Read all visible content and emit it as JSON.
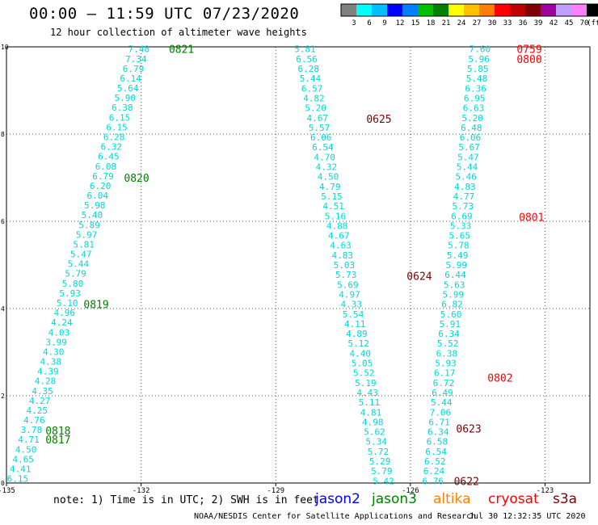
{
  "header": {
    "title": "00:00 – 11:59 UTC 07/23/2020",
    "subtitle": "12 hour collection of altimeter wave heights"
  },
  "legend_scale": {
    "colors": [
      "#808080",
      "#00ffff",
      "#00bfff",
      "#0000ff",
      "#0080ff",
      "#00c000",
      "#008000",
      "#ffff00",
      "#ffc000",
      "#ff8000",
      "#ff0000",
      "#c00000",
      "#800000",
      "#a000a0",
      "#c0a0ff",
      "#ff80ff",
      "#000000"
    ],
    "labels": [
      "3",
      "6",
      "9",
      "12",
      "15",
      "18",
      "21",
      "24",
      "27",
      "30",
      "33",
      "36",
      "39",
      "42",
      "45",
      "70",
      "(ft)"
    ]
  },
  "footer": {
    "note": "note:  1) Time is in UTC; 2) SWH is in feet",
    "credit": "NOAA/NESDIS Center for Satellite Applications and Research",
    "timestamp": "Jul 30 12:32:35 UTC 2020"
  },
  "satellites": [
    {
      "name": "jason2",
      "color": "#0000ff"
    },
    {
      "name": "jason3",
      "color": "#008000"
    },
    {
      "name": "altika",
      "color": "#ff8000"
    },
    {
      "name": "cryosat",
      "color": "#ff0000"
    },
    {
      "name": "s3a",
      "color": "#800000"
    }
  ],
  "chart_data": {
    "type": "scatter",
    "title": "00:00 – 11:59 UTC 07/23/2020",
    "xlabel": "",
    "ylabel": "",
    "xlim": [
      -135,
      -122
    ],
    "ylim": [
      0,
      10
    ],
    "x_ticks": [
      "-135",
      "-132",
      "-129",
      "-126",
      "-123",
      "-120"
    ],
    "y_ticks": [
      "0",
      "2",
      "4",
      "6",
      "8",
      "10"
    ],
    "grid": true,
    "value_color": "#00d8d8",
    "tracks": [
      {
        "name": "jason3",
        "color": "#008000",
        "x_start": -134.75,
        "x_end": -132.05,
        "y_start": 0.1,
        "y_end": 9.95,
        "values": [
          "6.15",
          "4.41",
          "4.65",
          "4.50",
          "4.71",
          "3.78",
          "4.76",
          "4.25",
          "4.27",
          "4.35",
          "4.28",
          "4.39",
          "4.38",
          "4.30",
          "3.99",
          "4.03",
          "4.24",
          "4.96",
          "5.10",
          "5.93",
          "5.80",
          "5.79",
          "5.44",
          "5.47",
          "5.81",
          "5.97",
          "5.89",
          "5.40",
          "5.98",
          "6.04",
          "6.20",
          "6.79",
          "6.08",
          "6.45",
          "6.32",
          "6.28",
          "6.15",
          "6.15",
          "6.38",
          "5.90",
          "5.64",
          "6.14",
          "6.79",
          "7.34",
          "7.48"
        ],
        "time_labels": [
          {
            "text": "0817",
            "x": -133.85,
            "y": 1.0
          },
          {
            "text": "0818",
            "x": -133.85,
            "y": 1.2
          },
          {
            "text": "0819",
            "x": -133.0,
            "y": 4.1
          },
          {
            "text": "0820",
            "x": -132.1,
            "y": 7.0
          },
          {
            "text": "0821",
            "x": -131.1,
            "y": 9.95
          }
        ]
      },
      {
        "name": "s3a",
        "color": "#800000",
        "x_start": -128.35,
        "x_end": -126.6,
        "y_start": 9.95,
        "y_end": 0.05,
        "values": [
          "5.81",
          "6.56",
          "6.28",
          "5.44",
          "6.57",
          "4.82",
          "5.20",
          "4.67",
          "5.57",
          "6.06",
          "6.54",
          "4.70",
          "4.32",
          "4.50",
          "4.79",
          "5.15",
          "4.51",
          "5.16",
          "4.88",
          "4.67",
          "4.63",
          "4.83",
          "5.03",
          "5.73",
          "5.69",
          "4.97",
          "4.33",
          "5.54",
          "4.11",
          "4.89",
          "5.12",
          "4.40",
          "5.05",
          "5.52",
          "5.19",
          "4.43",
          "5.11",
          "4.81",
          "4.98",
          "5.62",
          "5.34",
          "5.72",
          "5.29",
          "5.79",
          "5.42"
        ],
        "time_labels": [
          {
            "text": "0625",
            "x": -126.7,
            "y": 8.35
          },
          {
            "text": "0624",
            "x": -125.8,
            "y": 4.75
          },
          {
            "text": "0623",
            "x": -124.7,
            "y": 1.25
          },
          {
            "text": "0622",
            "x": -124.75,
            "y": 0.05
          }
        ]
      },
      {
        "name": "cryosat",
        "color": "#ff0000",
        "x_start": -124.45,
        "x_end": -125.5,
        "y_start": 9.95,
        "y_end": 0.05,
        "values": [
          "7.60",
          "5.96",
          "5.85",
          "5.48",
          "6.36",
          "6.95",
          "6.63",
          "5.20",
          "6.48",
          "6.06",
          "5.67",
          "5.47",
          "5.44",
          "5.46",
          "4.83",
          "4.77",
          "5.73",
          "6.69",
          "5.33",
          "5.65",
          "5.78",
          "5.49",
          "5.99",
          "6.44",
          "5.63",
          "5.99",
          "6.82",
          "5.60",
          "5.91",
          "6.34",
          "5.52",
          "6.38",
          "5.93",
          "6.17",
          "6.72",
          "6.49",
          "5.44",
          "7.06",
          "6.71",
          "6.34",
          "6.58",
          "6.54",
          "6.52",
          "6.24",
          "6.76"
        ],
        "time_labels": [
          {
            "text": "0759",
            "x": -123.35,
            "y": 9.95
          },
          {
            "text": "0800",
            "x": -123.35,
            "y": 9.72
          },
          {
            "text": "0801",
            "x": -123.3,
            "y": 6.1
          },
          {
            "text": "0802",
            "x": -124.0,
            "y": 2.42
          }
        ]
      }
    ]
  }
}
